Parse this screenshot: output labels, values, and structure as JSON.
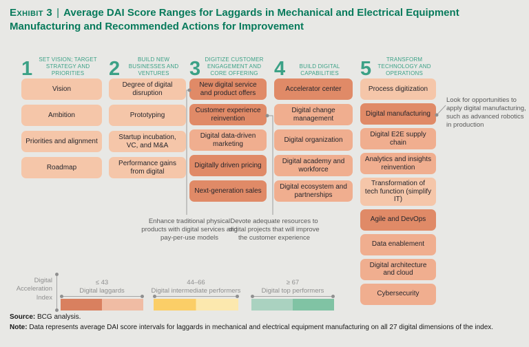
{
  "title": {
    "exhibit_label": "Exhibit 3",
    "separator": "|",
    "text": "Average DAI Score Ranges for Laggards in Mechanical and Electrical Equipment Manufacturing and Recommended Actions for Improvement"
  },
  "colors": {
    "background": "#e8e8e5",
    "accent_teal": "#077a5b",
    "header_teal": "#3ba186",
    "shade_light": "#f5c6a9",
    "shade_medium": "#f0ae8f",
    "shade_dark": "#e08a67",
    "annotation_gray": "#595959",
    "legend_gray": "#8e8e8e"
  },
  "columns": [
    {
      "number": "1",
      "header": "SET VISION; TARGET STRATEGY AND PRIORITIES",
      "boxes": [
        {
          "label": "Vision",
          "shade": "light"
        },
        {
          "label": "Ambition",
          "shade": "light"
        },
        {
          "label": "Priorities and alignment",
          "shade": "light"
        },
        {
          "label": "Roadmap",
          "shade": "light"
        }
      ]
    },
    {
      "number": "2",
      "header": "BUILD NEW BUSINESSES AND VENTURES",
      "boxes": [
        {
          "label": "Degree of digital disruption",
          "shade": "light"
        },
        {
          "label": "Prototyping",
          "shade": "light"
        },
        {
          "label": "Startup incubation, VC, and M&A",
          "shade": "light"
        },
        {
          "label": "Performance gains from digital",
          "shade": "light"
        }
      ]
    },
    {
      "number": "3",
      "header": "DIGITIZE CUSTOMER ENGAGEMENT AND CORE OFFERING",
      "boxes": [
        {
          "label": "New digital service and product offers",
          "shade": "dark"
        },
        {
          "label": "Customer experience reinvention",
          "shade": "dark"
        },
        {
          "label": "Digital data-driven marketing",
          "shade": "medium"
        },
        {
          "label": "Digitally driven pricing",
          "shade": "dark"
        },
        {
          "label": "Next-generation sales",
          "shade": "dark"
        }
      ]
    },
    {
      "number": "4",
      "header": "BUILD DIGITAL CAPABILITIES",
      "boxes": [
        {
          "label": "Accelerator center",
          "shade": "dark"
        },
        {
          "label": "Digital change management",
          "shade": "medium"
        },
        {
          "label": "Digital organization",
          "shade": "medium"
        },
        {
          "label": "Digital academy and workforce",
          "shade": "medium"
        },
        {
          "label": "Digital ecosystem and partnerships",
          "shade": "medium"
        }
      ]
    },
    {
      "number": "5",
      "header": "TRANSFORM TECHNOLOGY AND OPERATIONS",
      "boxes": [
        {
          "label": "Process digitization",
          "shade": "light"
        },
        {
          "label": "Digital manufacturing",
          "shade": "dark"
        },
        {
          "label": "Digital E2E supply chain",
          "shade": "medium"
        },
        {
          "label": "Analytics and insights reinvention",
          "shade": "medium"
        },
        {
          "label": "Transformation of tech function (simplify IT)",
          "shade": "light"
        },
        {
          "label": "Agile and DevOps",
          "shade": "dark"
        },
        {
          "label": "Data enablement",
          "shade": "medium"
        },
        {
          "label": "Digital architecture and cloud",
          "shade": "medium"
        },
        {
          "label": "Cybersecurity",
          "shade": "medium"
        }
      ]
    }
  ],
  "annotations": {
    "product_note": "Enhance traditional physical products with digital services and pay-per-use models",
    "customer_note": "Devote adequate resources to digital projects that will improve the customer experience",
    "manufacturing_note": "Look for opportunities to apply digital manufacturing, such as advanced robotics in production"
  },
  "legend": {
    "axis_label": "Digital Acceleration Index",
    "segments": [
      {
        "range": "≤ 43",
        "label": "Digital laggards",
        "left_color": "#d9805f",
        "right_color": "#f0bca4"
      },
      {
        "range": "44–66",
        "label": "Digital intermediate performers",
        "left_color": "#fbce67",
        "right_color": "#fce8ae"
      },
      {
        "range": "≥ 67",
        "label": "Digital top performers",
        "left_color": "#aad2c0",
        "right_color": "#80c3a4"
      }
    ]
  },
  "footer": {
    "source_label": "Source:",
    "source_text": " BCG analysis.",
    "note_label": "Note:",
    "note_text": " Data represents average DAI score intervals for laggards in mechanical and electrical equipment manufacturing on all 27 digital dimensions of the index."
  }
}
